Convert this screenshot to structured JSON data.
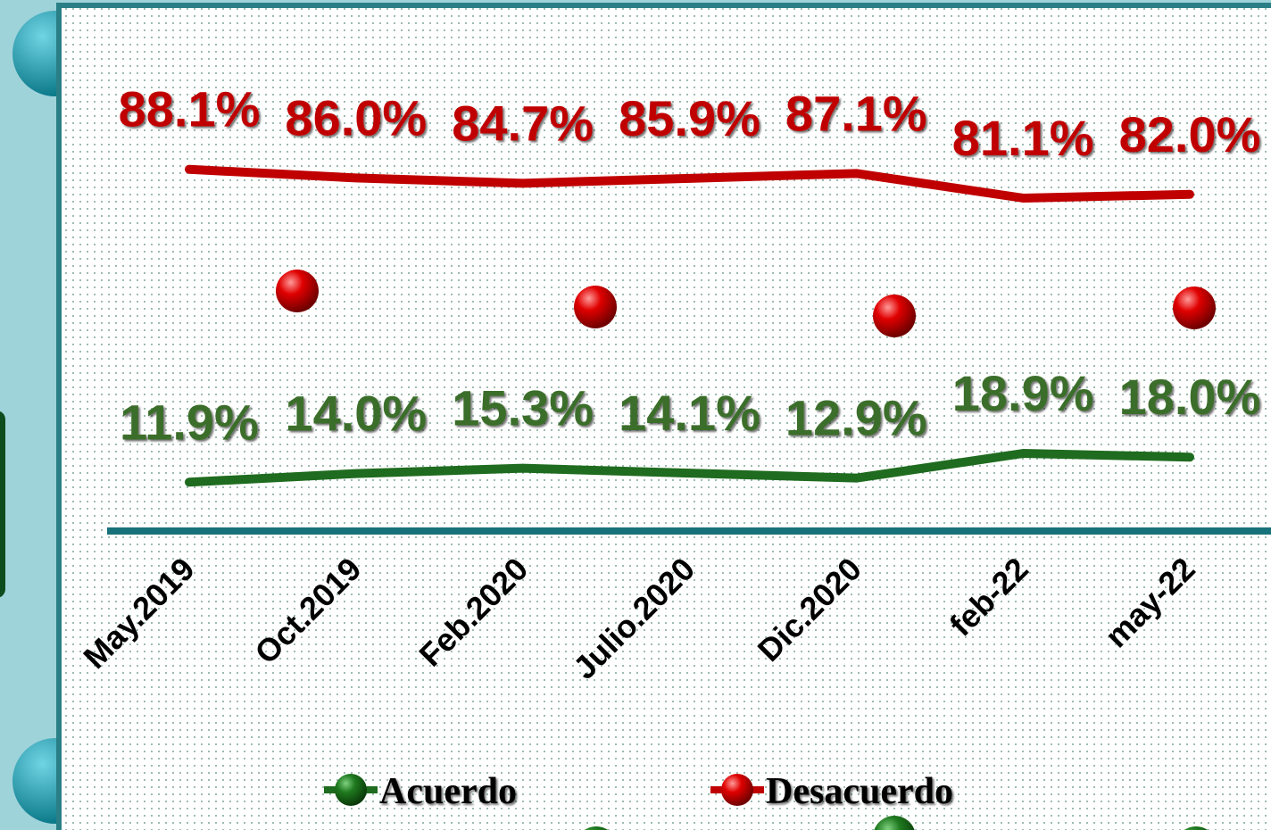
{
  "chart_data": {
    "type": "line",
    "categories": [
      "May.2019",
      "Oct.2019",
      "Feb.2020",
      "Julio.2020",
      "Dic.2020",
      "feb-22",
      "may-22"
    ],
    "series": [
      {
        "name": "Acuerdo",
        "color": "#1f6b1f",
        "label_color": "#3b6e2a",
        "values": [
          11.9,
          14.0,
          15.3,
          14.1,
          12.9,
          18.9,
          18.0
        ],
        "value_labels": [
          "11.9%",
          "14.0%",
          "15.3%",
          "14.1%",
          "12.9%",
          "18.9%",
          "18.0%"
        ]
      },
      {
        "name": "Desacuerdo",
        "color": "#c00000",
        "label_color": "#c00000",
        "values": [
          88.1,
          86.0,
          84.7,
          85.9,
          87.1,
          81.1,
          82.0
        ],
        "value_labels": [
          "88.1%",
          "86.0%",
          "84.7%",
          "85.9%",
          "87.1%",
          "81.1%",
          "82.0%"
        ]
      }
    ],
    "ylim": [
      0,
      120
    ],
    "legend": "bottom"
  }
}
